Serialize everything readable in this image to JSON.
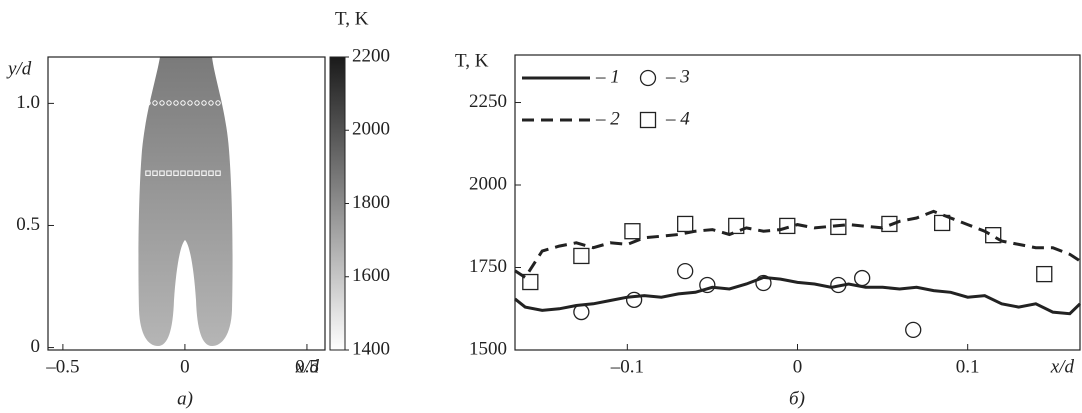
{
  "chart_data": [
    {
      "type": "image",
      "caption": "а)",
      "xlabel": "x/d",
      "ylabel": "y/d",
      "xlim": [
        -0.561,
        0.574
      ],
      "ylim": [
        -0.01,
        1.19
      ],
      "xticks": [
        {
          "value": -0.5,
          "label": "–0.5"
        },
        0,
        {
          "value": 0.5,
          "label": "0.5"
        }
      ],
      "yticks": [
        0,
        {
          "value": 0.5,
          "label": "0.5"
        },
        {
          "value": 1,
          "label": "1.0"
        }
      ],
      "colorbar": {
        "label": "T, K",
        "lim": [
          1400,
          2200
        ],
        "ticks": [
          1400,
          1600,
          1800,
          2000,
          2200
        ]
      }
    },
    {
      "type": "line",
      "caption": "б)",
      "xlabel": "x/d",
      "ylabel": "T, K",
      "xlim": [
        -0.166,
        0.166
      ],
      "ylim": [
        1500,
        2394
      ],
      "xticks": [
        {
          "value": -0.1,
          "label": "–0.1"
        },
        0,
        0.1
      ],
      "yticks": [
        1500,
        1750,
        2000,
        2250
      ],
      "series": [
        {
          "name": "– 1",
          "color": "#222222",
          "style": "solid",
          "x": [
            -0.166,
            -0.16,
            -0.15,
            -0.14,
            -0.13,
            -0.12,
            -0.11,
            -0.1,
            -0.09,
            -0.08,
            -0.07,
            -0.06,
            -0.05,
            -0.04,
            -0.03,
            -0.02,
            -0.01,
            0,
            0.01,
            0.02,
            0.03,
            0.04,
            0.05,
            0.06,
            0.07,
            0.08,
            0.09,
            0.1,
            0.11,
            0.12,
            0.13,
            0.14,
            0.15,
            0.16,
            0.166
          ],
          "values": [
            1655,
            1630,
            1620,
            1625,
            1635,
            1640,
            1650,
            1660,
            1665,
            1660,
            1670,
            1675,
            1690,
            1685,
            1700,
            1720,
            1715,
            1705,
            1700,
            1690,
            1700,
            1690,
            1690,
            1685,
            1690,
            1680,
            1675,
            1660,
            1665,
            1640,
            1630,
            1640,
            1615,
            1610,
            1640
          ]
        },
        {
          "name": "– 2",
          "color": "#222222",
          "style": "dashed",
          "x": [
            -0.166,
            -0.16,
            -0.15,
            -0.14,
            -0.13,
            -0.12,
            -0.11,
            -0.1,
            -0.09,
            -0.08,
            -0.07,
            -0.06,
            -0.05,
            -0.04,
            -0.03,
            -0.02,
            -0.01,
            0,
            0.01,
            0.02,
            0.03,
            0.04,
            0.05,
            0.06,
            0.07,
            0.08,
            0.09,
            0.1,
            0.11,
            0.12,
            0.13,
            0.14,
            0.15,
            0.16,
            0.166
          ],
          "values": [
            1740,
            1720,
            1800,
            1815,
            1825,
            1810,
            1825,
            1820,
            1840,
            1845,
            1850,
            1860,
            1865,
            1850,
            1870,
            1860,
            1865,
            1880,
            1870,
            1875,
            1880,
            1875,
            1870,
            1890,
            1900,
            1920,
            1900,
            1880,
            1860,
            1830,
            1820,
            1810,
            1810,
            1790,
            1770
          ]
        },
        {
          "name": "– 3",
          "color": "#222222",
          "marker": "circle",
          "x": [
            -0.127,
            -0.096,
            -0.066,
            -0.053,
            -0.02,
            0.024,
            0.038,
            0.068
          ],
          "values": [
            1615,
            1652,
            1739,
            1697,
            1703,
            1697,
            1718,
            1561
          ]
        },
        {
          "name": "– 4",
          "color": "#222222",
          "marker": "square",
          "x": [
            -0.157,
            -0.127,
            -0.097,
            -0.066,
            -0.036,
            -0.006,
            0.024,
            0.054,
            0.085,
            0.115,
            0.145
          ],
          "values": [
            1706,
            1785,
            1860,
            1882,
            1876,
            1876,
            1873,
            1882,
            1885,
            1848,
            1730
          ]
        }
      ]
    }
  ]
}
